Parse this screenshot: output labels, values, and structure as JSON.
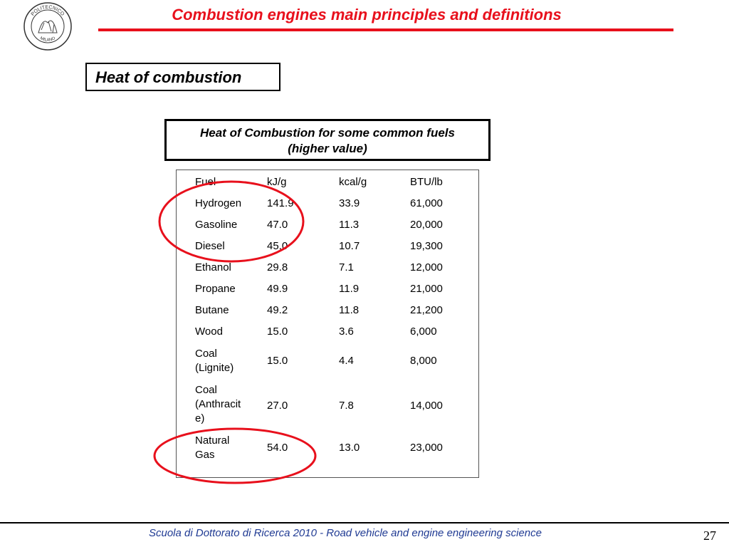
{
  "header": {
    "title": "Combustion engines main principles and definitions",
    "logo_text_top": "POLITECNICO",
    "logo_text_bottom": "MILANO"
  },
  "section_label": "Heat of combustion",
  "caption": {
    "line1": "Heat of Combustion for some common fuels",
    "line2": "(higher value)"
  },
  "table": {
    "headers": [
      "Fuel",
      "kJ/g",
      "kcal/g",
      "BTU/lb"
    ],
    "rows": [
      {
        "fuel": [
          "Hydrogen"
        ],
        "kj_g": "141.9",
        "kcal_g": "33.9",
        "btu_lb": "61,000"
      },
      {
        "fuel": [
          "Gasoline"
        ],
        "kj_g": "47.0",
        "kcal_g": "11.3",
        "btu_lb": "20,000"
      },
      {
        "fuel": [
          "Diesel"
        ],
        "kj_g": "45.0",
        "kcal_g": "10.7",
        "btu_lb": "19,300"
      },
      {
        "fuel": [
          "Ethanol"
        ],
        "kj_g": "29.8",
        "kcal_g": "7.1",
        "btu_lb": "12,000"
      },
      {
        "fuel": [
          "Propane"
        ],
        "kj_g": "49.9",
        "kcal_g": "11.9",
        "btu_lb": "21,000"
      },
      {
        "fuel": [
          "Butane"
        ],
        "kj_g": "49.2",
        "kcal_g": "11.8",
        "btu_lb": "21,200"
      },
      {
        "fuel": [
          "Wood"
        ],
        "kj_g": "15.0",
        "kcal_g": "3.6",
        "btu_lb": "6,000"
      },
      {
        "fuel": [
          "Coal",
          "(Lignite)"
        ],
        "kj_g": "15.0",
        "kcal_g": "4.4",
        "btu_lb": "8,000"
      },
      {
        "fuel": [
          "Coal",
          "(Anthracit",
          "e)"
        ],
        "kj_g": "27.0",
        "kcal_g": "7.8",
        "btu_lb": "14,000"
      },
      {
        "fuel": [
          "Natural",
          "Gas"
        ],
        "kj_g": "54.0",
        "kcal_g": "13.0",
        "btu_lb": "23,000"
      }
    ]
  },
  "annotations": {
    "circle_color": "#e8101c"
  },
  "footer": {
    "text": "Scuola di Dottorato di Ricerca 2010 -  Road vehicle and engine  engineering science",
    "page_number": "27"
  }
}
